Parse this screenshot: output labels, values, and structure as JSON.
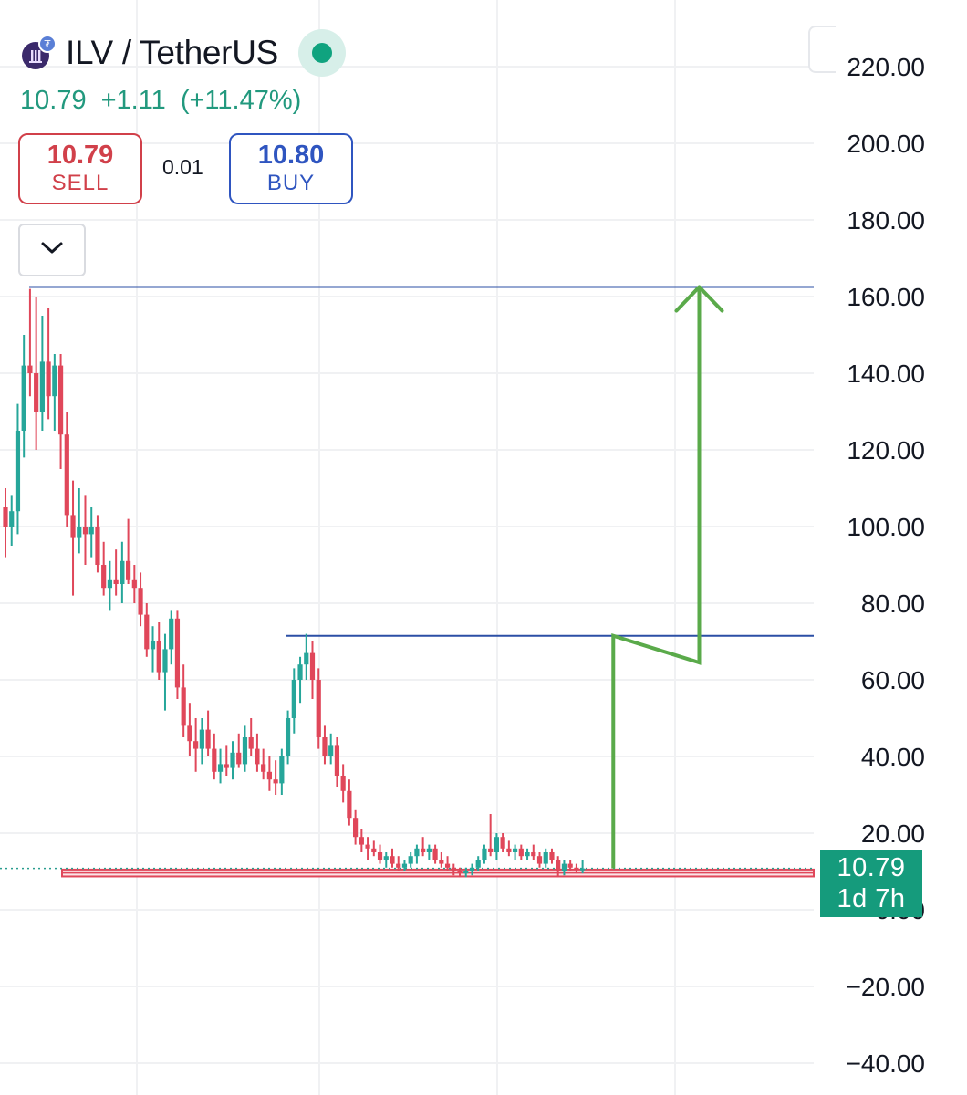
{
  "header": {
    "symbol": "ILV / TetherUS",
    "last_price": "10.79",
    "change": "+1.11",
    "change_percent": "(+11.47%)",
    "status_color": "#10a37f",
    "logo_icon": "ilv-token-logo-icon"
  },
  "trade": {
    "sell_price": "10.79",
    "sell_label": "SELL",
    "spread": "0.01",
    "buy_price": "10.80",
    "buy_label": "BUY"
  },
  "dropdown_icon": "chevron-down-icon",
  "price_tag": {
    "value": "10.79",
    "countdown": "1d 7h"
  },
  "colors": {
    "up": "#26a69a",
    "down": "#e0475a",
    "level_line": "#2b4fa5",
    "arrow": "#5aaa4a",
    "support_zone": "#e0475a",
    "grid": "#f0f1f3"
  },
  "chart_data": {
    "type": "candlestick",
    "y_axis": {
      "side": "right",
      "ticks": [
        "220.00",
        "200.00",
        "180.00",
        "160.00",
        "140.00",
        "120.00",
        "100.00",
        "80.00",
        "60.00",
        "40.00",
        "20.00",
        "0.00",
        "−20.00",
        "−40.00"
      ],
      "ylim": [
        -42,
        232
      ]
    },
    "grid": true,
    "current_price": 10.79,
    "levels": [
      {
        "name": "resistance-high",
        "price": 162.5
      },
      {
        "name": "resistance-mid",
        "price": 71.5
      }
    ],
    "support_zone": {
      "from": 8.7,
      "to": 10.5
    },
    "projection_path": [
      {
        "i": 99,
        "price": 10.8
      },
      {
        "i": 99,
        "price": 71.5
      },
      {
        "i": 113,
        "price": 64.5
      },
      {
        "i": 113,
        "price": 162.5
      }
    ],
    "candles": [
      {
        "o": 105,
        "h": 110,
        "l": 92,
        "c": 100
      },
      {
        "o": 100,
        "h": 108,
        "l": 95,
        "c": 104
      },
      {
        "o": 104,
        "h": 132,
        "l": 98,
        "c": 125
      },
      {
        "o": 125,
        "h": 150,
        "l": 118,
        "c": 142
      },
      {
        "o": 142,
        "h": 162,
        "l": 134,
        "c": 140
      },
      {
        "o": 140,
        "h": 160,
        "l": 120,
        "c": 130
      },
      {
        "o": 130,
        "h": 155,
        "l": 125,
        "c": 143
      },
      {
        "o": 143,
        "h": 157,
        "l": 128,
        "c": 134
      },
      {
        "o": 134,
        "h": 145,
        "l": 125,
        "c": 142
      },
      {
        "o": 142,
        "h": 145,
        "l": 115,
        "c": 124
      },
      {
        "o": 124,
        "h": 130,
        "l": 100,
        "c": 103
      },
      {
        "o": 103,
        "h": 112,
        "l": 82,
        "c": 97
      },
      {
        "o": 97,
        "h": 110,
        "l": 93,
        "c": 100
      },
      {
        "o": 100,
        "h": 108,
        "l": 90,
        "c": 98
      },
      {
        "o": 98,
        "h": 105,
        "l": 92,
        "c": 100
      },
      {
        "o": 100,
        "h": 103,
        "l": 88,
        "c": 90
      },
      {
        "o": 90,
        "h": 96,
        "l": 82,
        "c": 84
      },
      {
        "o": 84,
        "h": 91,
        "l": 78,
        "c": 86
      },
      {
        "o": 86,
        "h": 94,
        "l": 82,
        "c": 85
      },
      {
        "o": 85,
        "h": 96,
        "l": 80,
        "c": 91
      },
      {
        "o": 91,
        "h": 102,
        "l": 85,
        "c": 86
      },
      {
        "o": 86,
        "h": 90,
        "l": 80,
        "c": 84
      },
      {
        "o": 84,
        "h": 88,
        "l": 74,
        "c": 77
      },
      {
        "o": 77,
        "h": 80,
        "l": 66,
        "c": 68
      },
      {
        "o": 68,
        "h": 74,
        "l": 62,
        "c": 70
      },
      {
        "o": 70,
        "h": 75,
        "l": 60,
        "c": 62
      },
      {
        "o": 62,
        "h": 72,
        "l": 52,
        "c": 68
      },
      {
        "o": 68,
        "h": 78,
        "l": 64,
        "c": 76
      },
      {
        "o": 76,
        "h": 78,
        "l": 55,
        "c": 58
      },
      {
        "o": 58,
        "h": 64,
        "l": 45,
        "c": 48
      },
      {
        "o": 48,
        "h": 54,
        "l": 40,
        "c": 44
      },
      {
        "o": 44,
        "h": 50,
        "l": 36,
        "c": 42
      },
      {
        "o": 42,
        "h": 50,
        "l": 38,
        "c": 47
      },
      {
        "o": 47,
        "h": 52,
        "l": 40,
        "c": 42
      },
      {
        "o": 42,
        "h": 46,
        "l": 34,
        "c": 36
      },
      {
        "o": 36,
        "h": 42,
        "l": 33,
        "c": 38
      },
      {
        "o": 38,
        "h": 43,
        "l": 35,
        "c": 37
      },
      {
        "o": 37,
        "h": 44,
        "l": 34,
        "c": 41
      },
      {
        "o": 41,
        "h": 46,
        "l": 37,
        "c": 38
      },
      {
        "o": 38,
        "h": 48,
        "l": 36,
        "c": 45
      },
      {
        "o": 45,
        "h": 50,
        "l": 40,
        "c": 42
      },
      {
        "o": 42,
        "h": 46,
        "l": 36,
        "c": 38
      },
      {
        "o": 38,
        "h": 42,
        "l": 34,
        "c": 36
      },
      {
        "o": 36,
        "h": 40,
        "l": 31,
        "c": 34
      },
      {
        "o": 34,
        "h": 39,
        "l": 30,
        "c": 33
      },
      {
        "o": 33,
        "h": 42,
        "l": 30,
        "c": 40
      },
      {
        "o": 40,
        "h": 52,
        "l": 38,
        "c": 50
      },
      {
        "o": 50,
        "h": 63,
        "l": 46,
        "c": 60
      },
      {
        "o": 60,
        "h": 66,
        "l": 54,
        "c": 64
      },
      {
        "o": 64,
        "h": 72,
        "l": 60,
        "c": 67
      },
      {
        "o": 67,
        "h": 70,
        "l": 55,
        "c": 60
      },
      {
        "o": 60,
        "h": 63,
        "l": 42,
        "c": 45
      },
      {
        "o": 45,
        "h": 48,
        "l": 38,
        "c": 40
      },
      {
        "o": 40,
        "h": 46,
        "l": 38,
        "c": 43
      },
      {
        "o": 43,
        "h": 45,
        "l": 32,
        "c": 35
      },
      {
        "o": 35,
        "h": 38,
        "l": 28,
        "c": 31
      },
      {
        "o": 31,
        "h": 34,
        "l": 22,
        "c": 24
      },
      {
        "o": 24,
        "h": 26,
        "l": 17,
        "c": 19
      },
      {
        "o": 19,
        "h": 21,
        "l": 15,
        "c": 17
      },
      {
        "o": 17,
        "h": 19,
        "l": 13,
        "c": 16
      },
      {
        "o": 16,
        "h": 18,
        "l": 14,
        "c": 15
      },
      {
        "o": 15,
        "h": 17,
        "l": 12,
        "c": 13
      },
      {
        "o": 13,
        "h": 15,
        "l": 11,
        "c": 14
      },
      {
        "o": 14,
        "h": 16,
        "l": 11,
        "c": 12
      },
      {
        "o": 12,
        "h": 14,
        "l": 10,
        "c": 11
      },
      {
        "o": 11,
        "h": 13,
        "l": 10,
        "c": 12
      },
      {
        "o": 12,
        "h": 15,
        "l": 11,
        "c": 14
      },
      {
        "o": 14,
        "h": 17,
        "l": 12,
        "c": 16
      },
      {
        "o": 16,
        "h": 19,
        "l": 14,
        "c": 15
      },
      {
        "o": 15,
        "h": 17,
        "l": 13,
        "c": 16
      },
      {
        "o": 16,
        "h": 17,
        "l": 12,
        "c": 13
      },
      {
        "o": 13,
        "h": 15,
        "l": 11,
        "c": 12
      },
      {
        "o": 12,
        "h": 14,
        "l": 10,
        "c": 11
      },
      {
        "o": 11,
        "h": 12,
        "l": 9,
        "c": 10
      },
      {
        "o": 10,
        "h": 11,
        "l": 8.5,
        "c": 9.5
      },
      {
        "o": 9.5,
        "h": 11,
        "l": 8.5,
        "c": 10
      },
      {
        "o": 10,
        "h": 12,
        "l": 9,
        "c": 11
      },
      {
        "o": 11,
        "h": 14,
        "l": 10,
        "c": 13
      },
      {
        "o": 13,
        "h": 17,
        "l": 12,
        "c": 16
      },
      {
        "o": 16,
        "h": 25,
        "l": 14,
        "c": 15
      },
      {
        "o": 15,
        "h": 20,
        "l": 13,
        "c": 19
      },
      {
        "o": 19,
        "h": 20,
        "l": 15,
        "c": 16
      },
      {
        "o": 16,
        "h": 18,
        "l": 14,
        "c": 15
      },
      {
        "o": 15,
        "h": 17,
        "l": 13,
        "c": 16
      },
      {
        "o": 16,
        "h": 17,
        "l": 13,
        "c": 14
      },
      {
        "o": 14,
        "h": 16,
        "l": 13,
        "c": 15
      },
      {
        "o": 15,
        "h": 17,
        "l": 13,
        "c": 14
      },
      {
        "o": 14,
        "h": 15,
        "l": 11,
        "c": 12
      },
      {
        "o": 12,
        "h": 16,
        "l": 11,
        "c": 15
      },
      {
        "o": 15,
        "h": 16,
        "l": 12,
        "c": 13
      },
      {
        "o": 13,
        "h": 14,
        "l": 8.5,
        "c": 10
      },
      {
        "o": 10,
        "h": 13,
        "l": 9,
        "c": 12
      },
      {
        "o": 12,
        "h": 13,
        "l": 10,
        "c": 11
      },
      {
        "o": 11,
        "h": 12,
        "l": 9.5,
        "c": 10.5
      },
      {
        "o": 10.5,
        "h": 13,
        "l": 9.5,
        "c": 10.79
      }
    ]
  }
}
